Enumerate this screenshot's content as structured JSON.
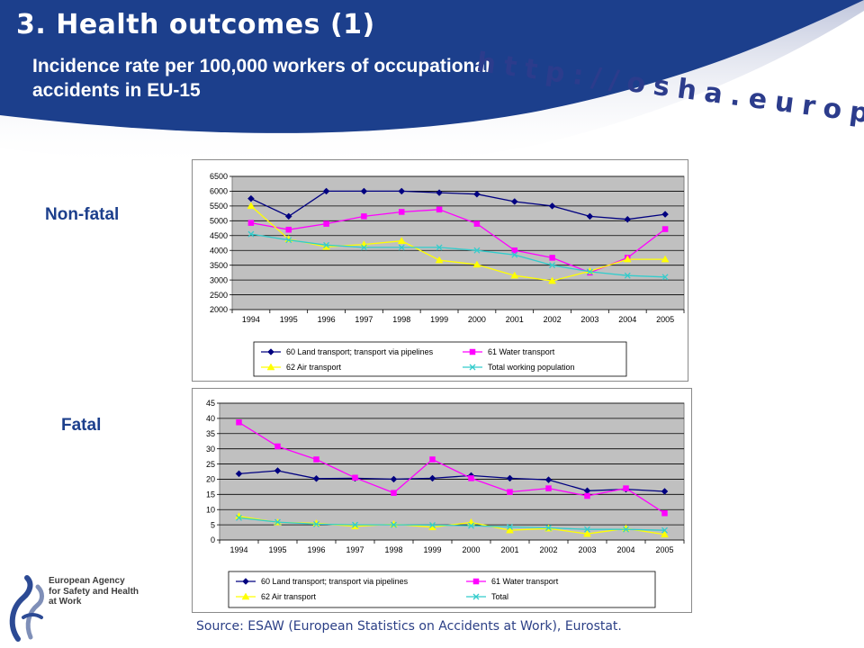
{
  "slide": {
    "title": "3. Health outcomes (1)",
    "subtitle": "Incidence rate per 100,000 workers of occupational accidents in EU-15",
    "url": "http://osha.europa.eu",
    "nonfatal_label": "Non-fatal",
    "fatal_label": "Fatal",
    "source": "Source: ESAW (European Statistics on Accidents at Work), Eurostat.",
    "logo_lines": [
      "European Agency",
      "for Safety and Health",
      "at Work"
    ],
    "colors": {
      "header_blue": "#1c3f8c",
      "plot_bg": "#c0c0c0"
    }
  },
  "chart_data": [
    {
      "type": "line",
      "title": "",
      "xlabel": "",
      "ylabel": "",
      "ylim": [
        2000,
        6500
      ],
      "yticks": [
        2000,
        2500,
        3000,
        3500,
        4000,
        4500,
        5000,
        5500,
        6000,
        6500
      ],
      "x": [
        "1994",
        "1995",
        "1996",
        "1997",
        "1998",
        "1999",
        "2000",
        "2001",
        "2002",
        "2003",
        "2004",
        "2005"
      ],
      "grid": "horizontal",
      "legend_position": "bottom",
      "series": [
        {
          "name": "60 Land transport; transport via pipelines",
          "color": "#000080",
          "marker": "diamond",
          "values": [
            5750,
            5150,
            6000,
            6000,
            6000,
            5950,
            5900,
            5650,
            5500,
            5150,
            5050,
            5220
          ]
        },
        {
          "name": "61 Water transport",
          "color": "#ff00ff",
          "marker": "square",
          "values": [
            4930,
            4700,
            4900,
            5150,
            5300,
            5380,
            4900,
            4000,
            3750,
            3250,
            3750,
            4720
          ]
        },
        {
          "name": "62 Air transport",
          "color": "#ffff00",
          "marker": "triangle",
          "values": [
            5500,
            4380,
            4120,
            4200,
            4320,
            3670,
            3520,
            3150,
            2970,
            3300,
            3700,
            3700
          ]
        },
        {
          "name": "Total working population",
          "color": "#33cccc",
          "marker": "x",
          "values": [
            4550,
            4350,
            4180,
            4100,
            4100,
            4100,
            4000,
            3850,
            3500,
            3280,
            3150,
            3100
          ]
        }
      ]
    },
    {
      "type": "line",
      "title": "",
      "xlabel": "",
      "ylabel": "",
      "ylim": [
        0,
        45
      ],
      "yticks": [
        0,
        5,
        10,
        15,
        20,
        25,
        30,
        35,
        40,
        45
      ],
      "x": [
        "1994",
        "1995",
        "1996",
        "1997",
        "1998",
        "1999",
        "2000",
        "2001",
        "2002",
        "2003",
        "2004",
        "2005"
      ],
      "grid": "horizontal",
      "legend_position": "bottom",
      "series": [
        {
          "name": "60 Land transport; transport via pipelines",
          "color": "#000080",
          "marker": "diamond",
          "values": [
            21.8,
            22.8,
            20.2,
            20.3,
            20.0,
            20.3,
            21.2,
            20.3,
            19.8,
            16.2,
            16.7,
            16.0
          ]
        },
        {
          "name": "61 Water transport",
          "color": "#ff00ff",
          "marker": "square",
          "values": [
            38.7,
            30.8,
            26.5,
            20.5,
            15.5,
            26.5,
            20.3,
            15.8,
            17.0,
            14.5,
            17.0,
            8.8
          ]
        },
        {
          "name": "62 Air transport",
          "color": "#ffff00",
          "marker": "triangle",
          "values": [
            7.8,
            5.8,
            5.5,
            4.5,
            5.2,
            4.2,
            5.8,
            3.2,
            3.8,
            2.0,
            3.8,
            1.8
          ]
        },
        {
          "name": "Total",
          "color": "#33cccc",
          "marker": "x",
          "values": [
            7.3,
            5.9,
            5.2,
            5.0,
            5.0,
            4.9,
            4.7,
            4.3,
            4.0,
            3.5,
            3.5,
            3.2
          ]
        }
      ]
    }
  ]
}
